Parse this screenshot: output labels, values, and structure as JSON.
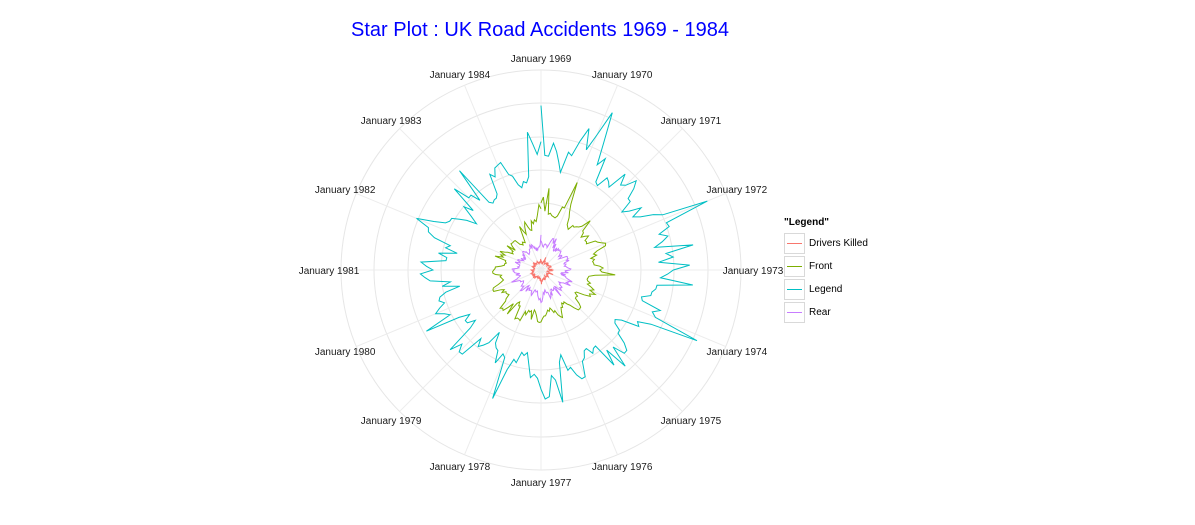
{
  "chart_data": {
    "type": "line",
    "coordinate_system": "polar",
    "title": "Star Plot : UK Road Accidents 1969 - 1984",
    "title_color": "#0000ff",
    "x_tick_labels": [
      "January 1969",
      "January 1970",
      "January 1971",
      "January 1972",
      "January 1973",
      "January 1974",
      "January 1975",
      "January 1976",
      "January 1977",
      "January 1978",
      "January 1979",
      "January 1980",
      "January 1981",
      "January 1982",
      "January 1983",
      "January 1984"
    ],
    "r_range": [
      0,
      3000
    ],
    "grid": true,
    "legend_title": "\"Legend\"",
    "legend_position": "right",
    "series": [
      {
        "name": "Drivers Killed",
        "color": "#F8766D",
        "values": [
          115,
          128,
          120,
          139,
          123,
          116,
          131,
          132,
          149,
          112,
          133,
          137,
          118,
          115,
          131,
          114
        ]
      },
      {
        "name": "Front",
        "color": "#7CAE00",
        "values": [
          850,
          920,
          810,
          900,
          780,
          760,
          690,
          650,
          700,
          640,
          720,
          650,
          680,
          560,
          520,
          560
        ]
      },
      {
        "name": "Legend",
        "color": "#00BFC4",
        "values": [
          1700,
          1950,
          1750,
          1900,
          1850,
          1650,
          1550,
          1500,
          1650,
          1350,
          1450,
          1520,
          1600,
          1550,
          1400,
          1500
        ]
      },
      {
        "name": "Rear",
        "color": "#C77CFF",
        "values": [
          380,
          420,
          390,
          410,
          370,
          390,
          360,
          350,
          400,
          330,
          360,
          350,
          380,
          340,
          320,
          350
        ]
      }
    ]
  }
}
